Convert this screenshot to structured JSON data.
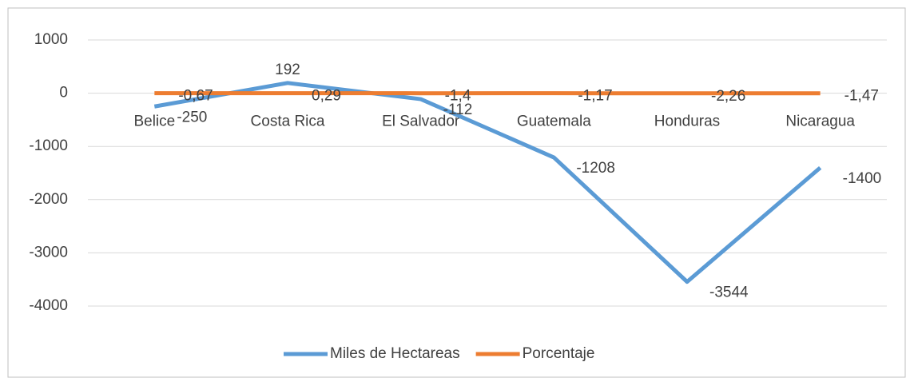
{
  "chart_data": {
    "type": "line",
    "categories": [
      "Belice",
      "Costa Rica",
      "El Salvador",
      "Guatemala",
      "Honduras",
      "Nicaragua"
    ],
    "series": [
      {
        "name": "Miles de Hectareas",
        "color": "#5b9bd5",
        "values": [
          -250,
          192,
          -112,
          -1208,
          -3544,
          -1400
        ]
      },
      {
        "name": "Porcentaje",
        "color": "#ed7d31",
        "values": [
          -0.67,
          0.29,
          -1.4,
          -1.17,
          -2.26,
          -1.47
        ],
        "value_labels": [
          "-0,67",
          "0,29",
          "-1,4",
          "-1,17",
          "-2,26",
          "-1,47"
        ]
      }
    ],
    "ylim": [
      -4000,
      1000
    ],
    "yticks": [
      -4000,
      -3000,
      -2000,
      -1000,
      0,
      1000
    ],
    "grid": true,
    "legend": "bottom"
  }
}
